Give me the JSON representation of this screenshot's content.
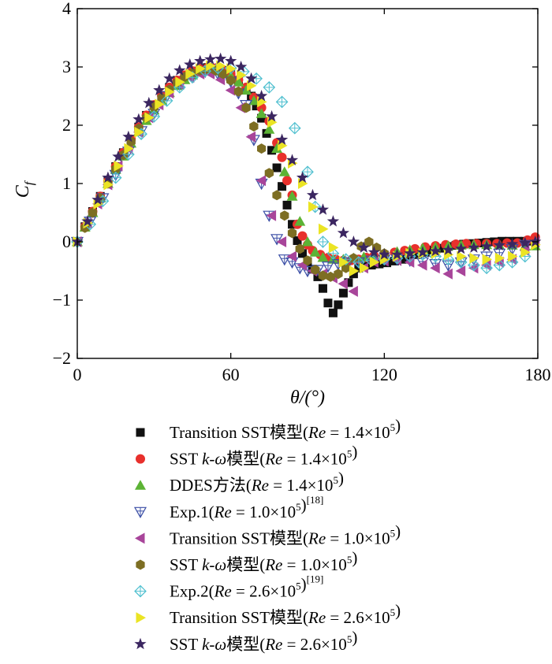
{
  "chart_data": {
    "type": "scatter",
    "xlabel": "θ/(°)",
    "ylabel_main": "C",
    "ylabel_sub": "f",
    "xlim": [
      0,
      180
    ],
    "ylim": [
      -2,
      4
    ],
    "xticks": [
      0,
      60,
      120,
      180
    ],
    "yticks": [
      -2,
      -1,
      0,
      1,
      2,
      3,
      4
    ],
    "legend_placement": "bottom",
    "series": [
      {
        "name": "Transition SST模型(Re = 1.4×10^5)",
        "marker": "square",
        "color": "#111111",
        "legend": [
          {
            "t": "Transition SST模型("
          },
          {
            "t": "Re",
            "i": true
          },
          {
            "t": " = 1.4×10"
          },
          {
            "t": "5",
            "s": true
          },
          {
            "t": ")"
          }
        ],
        "x": [
          0,
          3,
          6,
          9,
          12,
          15,
          18,
          21,
          24,
          27,
          30,
          33,
          36,
          39,
          42,
          45,
          48,
          51,
          54,
          57,
          60,
          63,
          66,
          68,
          70,
          72,
          74,
          76,
          78,
          80,
          82,
          84,
          86,
          88,
          90,
          92,
          94,
          96,
          98,
          100,
          102,
          104,
          106,
          108,
          110,
          112,
          115,
          118,
          121,
          124,
          127,
          130,
          133,
          136,
          139,
          142,
          145,
          148,
          151,
          154,
          157,
          160,
          163,
          166,
          169,
          172,
          175,
          178
        ],
        "y": [
          0,
          0.26,
          0.52,
          0.78,
          1.04,
          1.29,
          1.53,
          1.76,
          1.97,
          2.17,
          2.35,
          2.51,
          2.65,
          2.77,
          2.86,
          2.93,
          2.97,
          2.99,
          2.98,
          2.94,
          2.87,
          2.77,
          2.63,
          2.5,
          2.33,
          2.12,
          1.86,
          1.57,
          1.27,
          0.95,
          0.63,
          0.3,
          0.02,
          -0.2,
          -0.34,
          -0.47,
          -0.6,
          -0.8,
          -1.05,
          -1.22,
          -1.08,
          -0.88,
          -0.7,
          -0.55,
          -0.45,
          -0.42,
          -0.4,
          -0.38,
          -0.36,
          -0.33,
          -0.3,
          -0.26,
          -0.22,
          -0.18,
          -0.14,
          -0.11,
          -0.08,
          -0.06,
          -0.04,
          -0.03,
          -0.02,
          -0.01,
          0,
          0.01,
          0.01,
          0.01,
          0.01,
          0.01
        ]
      },
      {
        "name": "SST k-ω模型(Re = 1.4×10^5)",
        "marker": "circle",
        "color": "#e8302c",
        "legend": [
          {
            "t": "SST "
          },
          {
            "t": "k",
            "i": true
          },
          {
            "t": "-"
          },
          {
            "t": "ω",
            "i": true
          },
          {
            "t": "模型("
          },
          {
            "t": "Re",
            "i": true
          },
          {
            "t": " = 1.4×10"
          },
          {
            "t": "5",
            "s": true
          },
          {
            "t": ")"
          }
        ],
        "x": [
          0,
          3,
          6,
          9,
          12,
          15,
          18,
          21,
          24,
          27,
          30,
          33,
          36,
          39,
          42,
          45,
          48,
          51,
          54,
          57,
          60,
          63,
          66,
          69,
          72,
          75,
          78,
          80,
          82,
          84,
          86,
          88,
          90,
          92,
          95,
          98,
          101,
          104,
          107,
          110,
          113,
          116,
          120,
          124,
          128,
          132,
          136,
          140,
          144,
          148,
          152,
          156,
          160,
          164,
          168,
          172,
          176,
          179
        ],
        "y": [
          0,
          0.26,
          0.52,
          0.78,
          1.04,
          1.29,
          1.53,
          1.76,
          1.97,
          2.17,
          2.35,
          2.51,
          2.65,
          2.77,
          2.86,
          2.93,
          2.97,
          2.99,
          2.98,
          2.94,
          2.88,
          2.78,
          2.65,
          2.48,
          2.3,
          2.07,
          1.7,
          1.45,
          1.05,
          0.8,
          0.3,
          0.1,
          -0.05,
          -0.15,
          -0.22,
          -0.27,
          -0.3,
          -0.32,
          -0.32,
          -0.3,
          -0.27,
          -0.24,
          -0.21,
          -0.18,
          -0.15,
          -0.12,
          -0.09,
          -0.07,
          -0.05,
          -0.04,
          -0.03,
          -0.03,
          -0.03,
          -0.03,
          -0.02,
          -0.02,
          0.03,
          0.08
        ]
      },
      {
        "name": "DDES方法(Re = 1.4×10^5)",
        "marker": "triangle-up",
        "color": "#5cb335",
        "legend": [
          {
            "t": "DDES方法("
          },
          {
            "t": "Re",
            "i": true
          },
          {
            "t": " = 1.4×10"
          },
          {
            "t": "5",
            "s": true
          },
          {
            "t": ")"
          }
        ],
        "x": [
          0,
          3,
          6,
          9,
          12,
          15,
          18,
          21,
          24,
          27,
          30,
          33,
          36,
          39,
          42,
          45,
          48,
          51,
          54,
          57,
          60,
          63,
          66,
          69,
          72,
          75,
          78,
          81,
          84,
          87,
          90,
          93,
          96,
          100,
          104,
          108,
          112,
          116,
          120,
          125,
          130,
          135,
          140,
          145,
          150,
          155,
          160,
          165,
          170,
          175,
          179
        ],
        "y": [
          0,
          0.25,
          0.5,
          0.75,
          1.0,
          1.24,
          1.47,
          1.69,
          1.89,
          2.08,
          2.26,
          2.42,
          2.56,
          2.68,
          2.78,
          2.86,
          2.91,
          2.93,
          2.93,
          2.9,
          2.84,
          2.74,
          2.6,
          2.42,
          2.2,
          1.93,
          1.6,
          1.2,
          0.78,
          0.35,
          0.0,
          -0.18,
          -0.27,
          -0.3,
          -0.3,
          -0.28,
          -0.26,
          -0.23,
          -0.2,
          -0.17,
          -0.14,
          -0.11,
          -0.09,
          -0.07,
          -0.06,
          -0.05,
          -0.05,
          -0.06,
          -0.06,
          -0.07,
          -0.07
        ]
      },
      {
        "name": "Exp.1(Re = 1.0×10^5)[18]",
        "marker": "triangle-down-open",
        "color": "#3b4fa6",
        "legend": [
          {
            "t": "Exp.1("
          },
          {
            "t": "Re",
            "i": true
          },
          {
            "t": " = 1.0×10"
          },
          {
            "t": "5",
            "s": true
          },
          {
            "t": ")"
          },
          {
            "t": "[18]",
            "s": true
          }
        ],
        "x": [
          0,
          5,
          10,
          15,
          20,
          25,
          30,
          35,
          40,
          45,
          50,
          55,
          60,
          63,
          66,
          69,
          72,
          75,
          78,
          81,
          84,
          87,
          90,
          94,
          98,
          102,
          106,
          110,
          115,
          120,
          125,
          130,
          135,
          140,
          145,
          150,
          155,
          160,
          165,
          170,
          175
        ],
        "y": [
          0,
          0.35,
          0.75,
          1.15,
          1.55,
          1.9,
          2.2,
          2.5,
          2.7,
          2.85,
          2.92,
          2.88,
          2.75,
          2.55,
          2.35,
          1.75,
          1.0,
          0.45,
          0.05,
          -0.3,
          -0.35,
          -0.45,
          -0.5,
          -0.48,
          -0.42,
          -0.38,
          -0.35,
          -0.35,
          -0.32,
          -0.3,
          -0.3,
          -0.32,
          -0.35,
          -0.38,
          -0.4,
          -0.35,
          -0.3,
          -0.25,
          -0.2,
          -0.12,
          -0.05
        ]
      },
      {
        "name": "Transition SST模型(Re = 1.0×10^5)",
        "marker": "triangle-left",
        "color": "#a8459a",
        "legend": [
          {
            "t": "Transition SST模型("
          },
          {
            "t": "Re",
            "i": true
          },
          {
            "t": " = 1.0×10"
          },
          {
            "t": "5",
            "s": true
          },
          {
            "t": ")"
          }
        ],
        "x": [
          0,
          4,
          8,
          12,
          16,
          20,
          24,
          28,
          32,
          36,
          40,
          44,
          48,
          52,
          56,
          60,
          64,
          68,
          72,
          76,
          80,
          84,
          88,
          92,
          96,
          100,
          104,
          108,
          112,
          116,
          120,
          125,
          130,
          135,
          140,
          145,
          150,
          155,
          160,
          165,
          170,
          175,
          179
        ],
        "y": [
          0,
          0.32,
          0.65,
          0.98,
          1.3,
          1.6,
          1.88,
          2.13,
          2.35,
          2.55,
          2.7,
          2.82,
          2.88,
          2.88,
          2.78,
          2.6,
          2.3,
          1.8,
          1.05,
          0.45,
          0.0,
          -0.25,
          -0.4,
          -0.5,
          -0.55,
          -0.62,
          -0.72,
          -0.85,
          -0.45,
          -0.35,
          -0.33,
          -0.32,
          -0.35,
          -0.4,
          -0.45,
          -0.55,
          -0.5,
          -0.45,
          -0.4,
          -0.35,
          -0.3,
          -0.15,
          0.0
        ]
      },
      {
        "name": "SST k-ω模型(Re = 1.0×10^5)",
        "marker": "hexagon",
        "color": "#7d6e23",
        "legend": [
          {
            "t": "SST "
          },
          {
            "t": "k",
            "i": true
          },
          {
            "t": "-"
          },
          {
            "t": "ω",
            "i": true
          },
          {
            "t": "模型("
          },
          {
            "t": "Re",
            "i": true
          },
          {
            "t": " = 1.0×10"
          },
          {
            "t": "5",
            "s": true
          },
          {
            "t": ")"
          }
        ],
        "x": [
          0,
          3,
          6,
          9,
          12,
          15,
          18,
          21,
          24,
          27,
          30,
          33,
          36,
          39,
          42,
          45,
          48,
          51,
          54,
          57,
          60,
          63,
          66,
          69,
          72,
          75,
          78,
          81,
          84,
          87,
          90,
          93,
          96,
          99,
          102,
          105,
          108,
          111,
          114,
          117,
          120
        ],
        "y": [
          0,
          0.24,
          0.5,
          0.75,
          1.0,
          1.25,
          1.49,
          1.72,
          1.94,
          2.13,
          2.31,
          2.47,
          2.61,
          2.73,
          2.83,
          2.9,
          2.94,
          2.96,
          2.94,
          2.88,
          2.77,
          2.58,
          2.3,
          1.98,
          1.6,
          1.18,
          0.8,
          0.45,
          0.15,
          -0.12,
          -0.32,
          -0.48,
          -0.58,
          -0.6,
          -0.55,
          -0.45,
          -0.28,
          -0.08,
          0.0,
          -0.1,
          -0.2
        ]
      },
      {
        "name": "Exp.2(Re = 2.6×10^5)[19]",
        "marker": "diamond-cross-open",
        "color": "#4ebfcf",
        "legend": [
          {
            "t": "Exp.2("
          },
          {
            "t": "Re",
            "i": true
          },
          {
            "t": " = 2.6×10"
          },
          {
            "t": "5",
            "s": true
          },
          {
            "t": ")"
          },
          {
            "t": "[19]",
            "s": true
          }
        ],
        "x": [
          0,
          5,
          10,
          15,
          20,
          25,
          30,
          35,
          40,
          45,
          50,
          55,
          60,
          65,
          70,
          75,
          80,
          85,
          90,
          93,
          96,
          100,
          105,
          110,
          115,
          120,
          125,
          130,
          135,
          140,
          145,
          150,
          155,
          160,
          165,
          170,
          175
        ],
        "y": [
          0,
          0.3,
          0.7,
          1.1,
          1.5,
          1.85,
          2.15,
          2.42,
          2.65,
          2.82,
          2.93,
          2.98,
          2.98,
          2.92,
          2.8,
          2.65,
          2.4,
          1.95,
          1.2,
          0.6,
          0.0,
          -0.2,
          -0.3,
          -0.35,
          -0.32,
          -0.3,
          -0.28,
          -0.25,
          -0.22,
          -0.25,
          -0.3,
          -0.35,
          -0.4,
          -0.45,
          -0.4,
          -0.35,
          -0.25
        ]
      },
      {
        "name": "Transition SST模型(Re = 2.6×10^5)",
        "marker": "triangle-right",
        "color": "#ebe424",
        "legend": [
          {
            "t": "Transition SST模型("
          },
          {
            "t": "Re",
            "i": true
          },
          {
            "t": " = 2.6×10"
          },
          {
            "t": "5",
            "s": true
          },
          {
            "t": ")"
          }
        ],
        "x": [
          0,
          4,
          8,
          12,
          16,
          20,
          24,
          28,
          32,
          36,
          40,
          44,
          48,
          52,
          56,
          60,
          64,
          68,
          72,
          76,
          80,
          84,
          88,
          92,
          96,
          100,
          104,
          108,
          112,
          116,
          120,
          125,
          130,
          135,
          140,
          145,
          150,
          155,
          160,
          165,
          170,
          175,
          179
        ],
        "y": [
          0,
          0.32,
          0.65,
          0.98,
          1.3,
          1.6,
          1.88,
          2.13,
          2.36,
          2.57,
          2.74,
          2.88,
          2.97,
          3.02,
          3.02,
          2.97,
          2.86,
          2.68,
          2.4,
          2.05,
          1.65,
          1.35,
          1.0,
          0.6,
          0.22,
          -0.1,
          -0.35,
          -0.5,
          -0.45,
          -0.35,
          -0.3,
          -0.25,
          -0.2,
          -0.2,
          -0.2,
          -0.22,
          -0.25,
          -0.28,
          -0.3,
          -0.28,
          -0.25,
          -0.18,
          -0.05
        ]
      },
      {
        "name": "SST k-ω模型(Re = 2.6×10^5)",
        "marker": "star",
        "color": "#3b2660",
        "legend": [
          {
            "t": "SST "
          },
          {
            "t": "k",
            "i": true
          },
          {
            "t": "-"
          },
          {
            "t": "ω",
            "i": true
          },
          {
            "t": "模型("
          },
          {
            "t": "Re",
            "i": true
          },
          {
            "t": " = 2.6×10"
          },
          {
            "t": "5",
            "s": true
          },
          {
            "t": ")"
          }
        ],
        "x": [
          0,
          4,
          8,
          12,
          16,
          20,
          24,
          28,
          32,
          36,
          40,
          44,
          48,
          52,
          56,
          60,
          64,
          68,
          72,
          76,
          80,
          84,
          88,
          92,
          96,
          100,
          104,
          108,
          112,
          116,
          120,
          125,
          130,
          135,
          140,
          145,
          150,
          155,
          160,
          165,
          170,
          175,
          179
        ],
        "y": [
          0,
          0.35,
          0.72,
          1.1,
          1.46,
          1.8,
          2.1,
          2.38,
          2.6,
          2.8,
          2.94,
          3.04,
          3.1,
          3.13,
          3.14,
          3.1,
          3.0,
          2.8,
          2.5,
          2.15,
          1.75,
          1.4,
          1.1,
          0.8,
          0.55,
          0.35,
          0.15,
          0.0,
          -0.1,
          -0.18,
          -0.22,
          -0.22,
          -0.2,
          -0.18,
          -0.16,
          -0.14,
          -0.12,
          -0.1,
          -0.08,
          -0.06,
          -0.04,
          -0.02,
          0.0
        ]
      }
    ]
  }
}
